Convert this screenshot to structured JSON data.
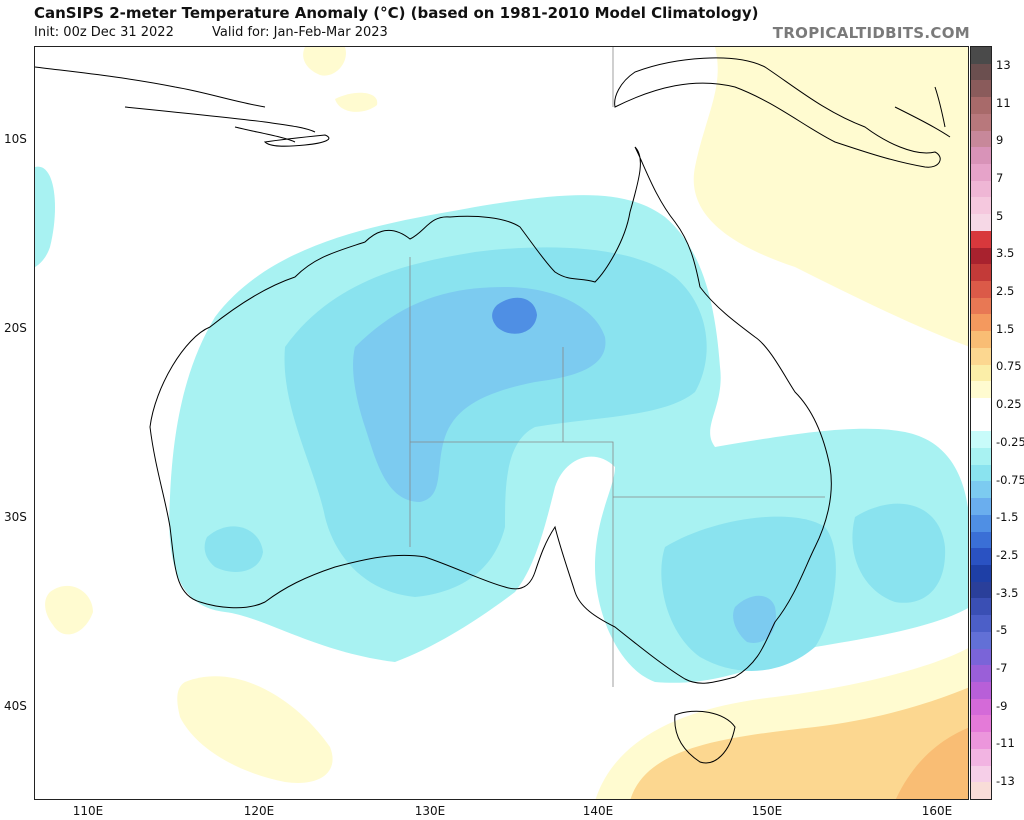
{
  "header": {
    "title": "CanSIPS 2-meter Temperature Anomaly (°C) (based on 1981-2010 Model Climatology)",
    "init": "Init: 00z Dec 31 2022",
    "valid": "Valid for: Jan-Feb-Mar 2023",
    "brand": "TROPICALTIDBITS.COM"
  },
  "map": {
    "lat_labels": [
      "10S",
      "20S",
      "30S",
      "40S"
    ],
    "lon_labels": [
      "110E",
      "120E",
      "130E",
      "140E",
      "150E",
      "160E"
    ]
  },
  "colorbar": {
    "labels": [
      "13",
      "11",
      "9",
      "7",
      "5",
      "3.5",
      "2.5",
      "1.5",
      "0.75",
      "0.25",
      "-0.25",
      "-0.75",
      "-1.5",
      "-2.5",
      "-3.5",
      "-5",
      "-7",
      "-9",
      "-11",
      "-13"
    ],
    "colors": [
      "#4a4a4a",
      "#6b4f4f",
      "#8a5b5b",
      "#a86a6a",
      "#b8787c",
      "#c7889a",
      "#d893b8",
      "#e6a3c9",
      "#efb6d5",
      "#f5c8de",
      "#f6d8e6",
      "#d8383c",
      "#a8222e",
      "#c33a38",
      "#db5a48",
      "#e87854",
      "#f4995e",
      "#f9bd74",
      "#fcd790",
      "#fbeea8",
      "#fffbd0",
      "#ffffff",
      "#ffffff",
      "#c8fbfa",
      "#a8f2f2",
      "#8ae3ef",
      "#7ccbf0",
      "#6aaeee",
      "#4f8fe4",
      "#3a6fd6",
      "#2a52c2",
      "#1e3fa6",
      "#2a3f9a",
      "#3a4fb4",
      "#4c5fc8",
      "#6270d6",
      "#7a64d8",
      "#9a5fd8",
      "#b85fd8",
      "#d46ad8",
      "#e47ad8",
      "#ec96dc",
      "#f2b4e2",
      "#f6cfe8",
      "#f9ddd8"
    ]
  }
}
